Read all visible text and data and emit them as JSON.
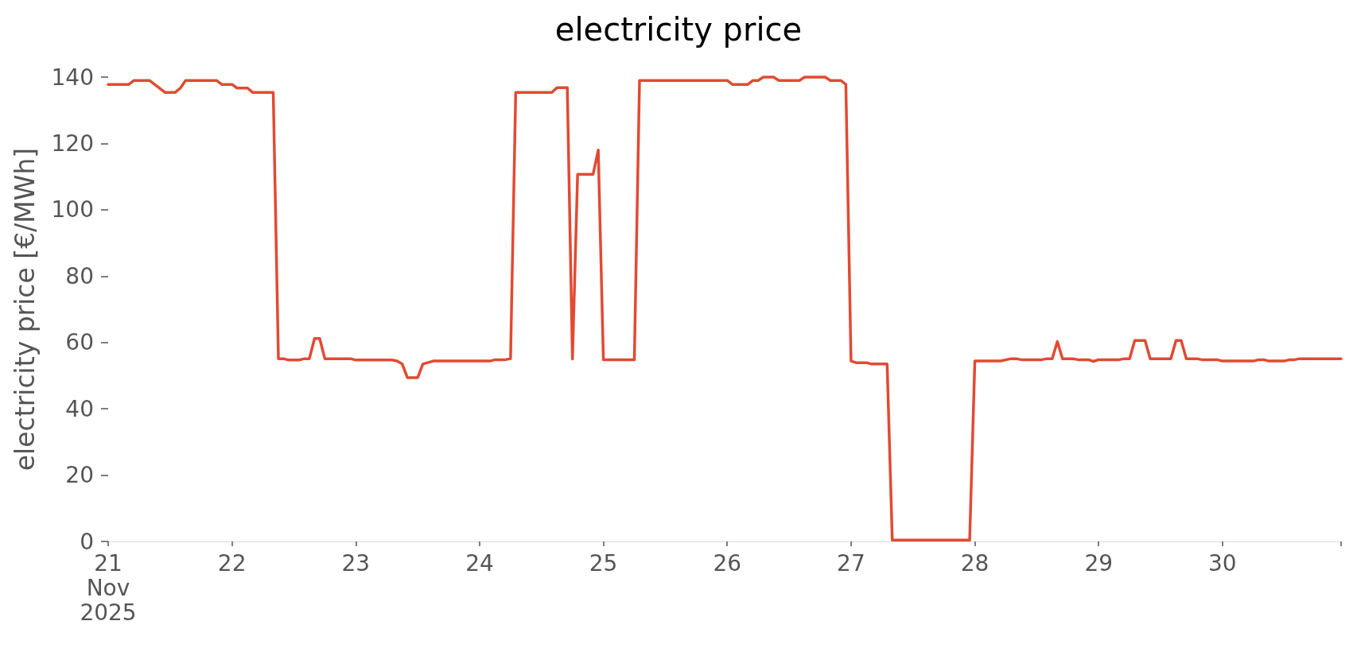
{
  "chart_data": {
    "type": "line",
    "title": "electricity price",
    "ylabel": "electricity price [€/MWh]",
    "x": [
      "2025-11-21T00:00",
      "2025-11-21T04:00",
      "2025-11-21T05:00",
      "2025-11-21T08:00",
      "2025-11-21T11:00",
      "2025-11-21T13:00",
      "2025-11-21T14:00",
      "2025-11-21T15:00",
      "2025-11-21T21:00",
      "2025-11-21T22:00",
      "2025-11-22T00:00",
      "2025-11-22T01:00",
      "2025-11-22T03:00",
      "2025-11-22T04:00",
      "2025-11-22T08:00",
      "2025-11-22T09:00",
      "2025-11-22T10:00",
      "2025-11-22T11:00",
      "2025-11-22T13:00",
      "2025-11-22T14:00",
      "2025-11-22T15:00",
      "2025-11-22T16:00",
      "2025-11-22T17:00",
      "2025-11-22T18:00",
      "2025-11-22T23:00",
      "2025-11-23T00:00",
      "2025-11-23T07:00",
      "2025-11-23T08:00",
      "2025-11-23T09:00",
      "2025-11-23T10:00",
      "2025-11-23T12:00",
      "2025-11-23T13:00",
      "2025-11-23T15:00",
      "2025-11-24T02:00",
      "2025-11-24T03:00",
      "2025-11-24T05:00",
      "2025-11-24T06:00",
      "2025-11-24T07:00",
      "2025-11-24T14:00",
      "2025-11-24T15:00",
      "2025-11-24T17:00",
      "2025-11-24T18:00",
      "2025-11-24T19:00",
      "2025-11-24T22:00",
      "2025-11-24T23:00",
      "2025-11-25T00:00",
      "2025-11-25T06:00",
      "2025-11-25T07:00",
      "2025-11-26T00:00",
      "2025-11-26T01:00",
      "2025-11-26T04:00",
      "2025-11-26T05:00",
      "2025-11-26T06:00",
      "2025-11-26T07:00",
      "2025-11-26T09:00",
      "2025-11-26T10:00",
      "2025-11-26T14:00",
      "2025-11-26T15:00",
      "2025-11-26T19:00",
      "2025-11-26T20:00",
      "2025-11-26T22:00",
      "2025-11-26T23:00",
      "2025-11-27T00:00",
      "2025-11-27T01:00",
      "2025-11-27T03:00",
      "2025-11-27T04:00",
      "2025-11-27T07:00",
      "2025-11-27T08:00",
      "2025-11-27T23:00",
      "2025-11-28T00:00",
      "2025-11-28T05:00",
      "2025-11-28T07:00",
      "2025-11-28T08:00",
      "2025-11-28T09:00",
      "2025-11-28T13:00",
      "2025-11-28T14:00",
      "2025-11-28T15:00",
      "2025-11-28T16:00",
      "2025-11-28T17:00",
      "2025-11-28T19:00",
      "2025-11-28T20:00",
      "2025-11-28T22:00",
      "2025-11-28T23:00",
      "2025-11-29T00:00",
      "2025-11-29T04:00",
      "2025-11-29T05:00",
      "2025-11-29T06:00",
      "2025-11-29T07:00",
      "2025-11-29T09:00",
      "2025-11-29T10:00",
      "2025-11-29T14:00",
      "2025-11-29T15:00",
      "2025-11-29T16:00",
      "2025-11-29T17:00",
      "2025-11-29T19:00",
      "2025-11-29T20:00",
      "2025-11-29T23:00",
      "2025-11-30T00:00",
      "2025-11-30T06:00",
      "2025-11-30T07:00",
      "2025-11-30T08:00",
      "2025-11-30T09:00",
      "2025-11-30T12:00",
      "2025-11-30T13:00",
      "2025-11-30T14:00",
      "2025-11-30T15:00",
      "2025-11-30T23:00"
    ],
    "series": [
      {
        "color": "#e24a33",
        "values": [
          137.8,
          137.8,
          139.0,
          139.0,
          135.4,
          135.4,
          136.7,
          139.0,
          139.0,
          137.8,
          137.8,
          136.7,
          136.7,
          135.4,
          135.4,
          55.1,
          55.1,
          54.7,
          54.7,
          55.1,
          55.1,
          61.2,
          61.2,
          55.1,
          55.1,
          54.7,
          54.7,
          54.4,
          53.5,
          49.4,
          49.4,
          53.5,
          54.4,
          54.4,
          54.8,
          54.8,
          55.1,
          135.4,
          135.4,
          136.8,
          136.8,
          55.0,
          110.7,
          110.7,
          118.0,
          54.8,
          54.8,
          139.0,
          139.0,
          137.8,
          137.8,
          139.0,
          139.0,
          140.0,
          140.0,
          139.0,
          139.0,
          140.0,
          140.0,
          139.0,
          139.0,
          137.8,
          54.4,
          53.9,
          53.9,
          53.5,
          53.5,
          0.4,
          0.4,
          54.4,
          54.4,
          55.1,
          55.1,
          54.8,
          54.8,
          55.1,
          55.1,
          60.3,
          55.1,
          55.1,
          54.8,
          54.8,
          54.3,
          54.8,
          54.8,
          55.1,
          55.1,
          60.6,
          60.6,
          55.1,
          55.1,
          60.6,
          60.6,
          55.1,
          55.1,
          54.8,
          54.8,
          54.4,
          54.4,
          54.8,
          54.8,
          54.4,
          54.4,
          54.8,
          54.8,
          55.1,
          55.1
        ]
      }
    ],
    "xlim": [
      "2025-11-21T00:00",
      "2025-11-30T23:00"
    ],
    "xticks": [
      {
        "value": "2025-11-21",
        "label": "21\nNov\n2025"
      },
      {
        "value": "2025-11-22",
        "label": "22"
      },
      {
        "value": "2025-11-23",
        "label": "23"
      },
      {
        "value": "2025-11-24",
        "label": "24"
      },
      {
        "value": "2025-11-25",
        "label": "25"
      },
      {
        "value": "2025-11-26",
        "label": "26"
      },
      {
        "value": "2025-11-27",
        "label": "27"
      },
      {
        "value": "2025-11-28",
        "label": "28"
      },
      {
        "value": "2025-11-29",
        "label": "29"
      },
      {
        "value": "2025-11-30",
        "label": "30"
      },
      {
        "value": "2025-11-30T23:00",
        "label": null
      }
    ],
    "ylim": [
      0,
      140
    ],
    "yticks": [
      0,
      20,
      40,
      60,
      80,
      100,
      120,
      140
    ],
    "grid": false,
    "marker": "none",
    "line_style": "solid"
  }
}
